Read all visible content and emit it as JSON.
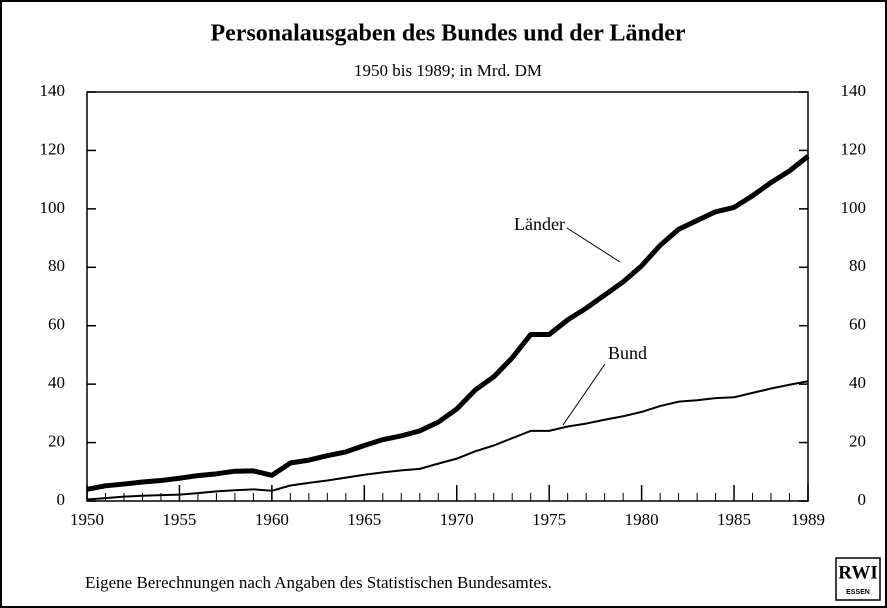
{
  "chart_data": {
    "type": "line",
    "title": "Personalausgaben des Bundes und der Länder",
    "subtitle": "1950 bis 1989; in Mrd. DM",
    "source": "Eigene Berechnungen nach Angaben des Statistischen Bundesamtes.",
    "logo": {
      "name": "RWI",
      "city": "ESSEN"
    },
    "x": [
      1950,
      1951,
      1952,
      1953,
      1954,
      1955,
      1956,
      1957,
      1958,
      1959,
      1960,
      1961,
      1962,
      1963,
      1964,
      1965,
      1966,
      1967,
      1968,
      1969,
      1970,
      1971,
      1972,
      1973,
      1974,
      1975,
      1976,
      1977,
      1978,
      1979,
      1980,
      1981,
      1982,
      1983,
      1984,
      1985,
      1986,
      1987,
      1988,
      1989
    ],
    "xlim": [
      1950,
      1989
    ],
    "xticks": [
      1950,
      1955,
      1960,
      1965,
      1970,
      1975,
      1980,
      1985,
      1989
    ],
    "ylim": [
      0,
      140
    ],
    "yticks": [
      0,
      20,
      40,
      60,
      80,
      100,
      120,
      140
    ],
    "y2lim": [
      0,
      140
    ],
    "y2ticks": [
      0,
      20,
      40,
      60,
      80,
      100,
      120,
      140
    ],
    "series": [
      {
        "name": "Länder",
        "color": "#000000",
        "values": [
          4,
          5.2,
          5.8,
          6.5,
          7,
          7.8,
          8.7,
          9.3,
          10.2,
          10.3,
          8.8,
          13,
          14,
          15.5,
          16.8,
          19,
          21,
          22.3,
          24,
          27,
          31.5,
          38,
          42.5,
          49,
          57,
          57,
          62,
          66,
          70.5,
          75,
          80.5,
          87.5,
          93,
          96,
          99,
          100.5,
          104.5,
          109,
          113,
          118
        ]
      },
      {
        "name": "Bund",
        "color": "#000000",
        "values": [
          0.5,
          1,
          1.5,
          1.8,
          2,
          2.2,
          2.7,
          3.3,
          3.7,
          4,
          3.5,
          5.3,
          6.2,
          7,
          8,
          9,
          9.8,
          10.5,
          11,
          12.8,
          14.5,
          17,
          19,
          21.5,
          24,
          24,
          25.5,
          26.5,
          27.8,
          29,
          30.5,
          32.5,
          34,
          34.5,
          35.2,
          35.5,
          37,
          38.5,
          39.8,
          41
        ]
      }
    ]
  }
}
